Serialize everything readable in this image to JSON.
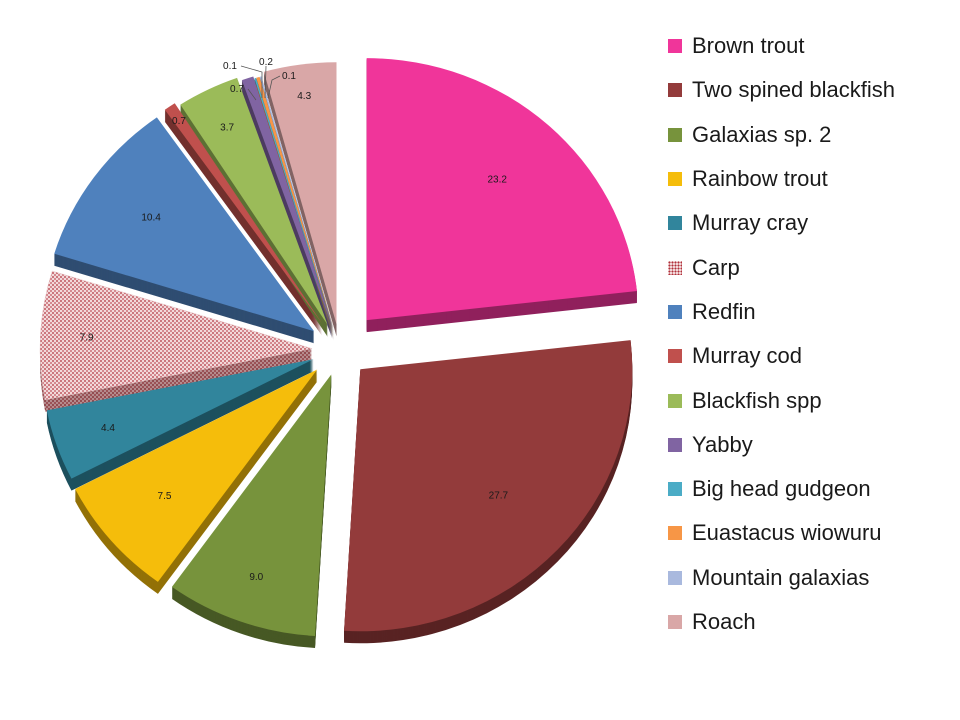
{
  "chart_data": {
    "type": "pie",
    "title": "",
    "style": "3d-exploded",
    "legend": "right",
    "slices": [
      {
        "label": "Brown trout",
        "value": 23.2,
        "display": "23.2",
        "color": "#f0359a"
      },
      {
        "label": "Two spined blackfish",
        "value": 27.7,
        "display": "27.7",
        "color": "#933b3b"
      },
      {
        "label": "Galaxias sp. 2",
        "value": 9.0,
        "display": "9.0",
        "color": "#77933c"
      },
      {
        "label": "Rainbow trout",
        "value": 7.5,
        "display": "7.5",
        "color": "#f5bd0b"
      },
      {
        "label": "Murray cray",
        "value": 4.4,
        "display": "4.4",
        "color": "#31859c"
      },
      {
        "label": "Carp",
        "value": 7.9,
        "display": "7.9",
        "color": "#e3a3a6",
        "pattern": "dots"
      },
      {
        "label": "Redfin",
        "value": 10.4,
        "display": "10.4",
        "color": "#4f81bd"
      },
      {
        "label": "Murray cod",
        "value": 0.7,
        "display": "0.7",
        "color": "#c0504d"
      },
      {
        "label": "Blackfish spp",
        "value": 3.7,
        "display": "3.7",
        "color": "#9bbb59"
      },
      {
        "label": "Yabby",
        "value": 0.7,
        "display": "0.7",
        "color": "#8064a2"
      },
      {
        "label": "Big head gudgeon",
        "value": 0.1,
        "display": "0.1",
        "color": "#4bacc6"
      },
      {
        "label": "Euastacus wiowuru",
        "value": 0.2,
        "display": "0.2",
        "color": "#f79646"
      },
      {
        "label": "Mountain galaxias",
        "value": 0.1,
        "display": "0.1",
        "color": "#a9b9de"
      },
      {
        "label": "Roach",
        "value": 4.3,
        "display": "4.3",
        "color": "#d9a7a7"
      }
    ]
  }
}
